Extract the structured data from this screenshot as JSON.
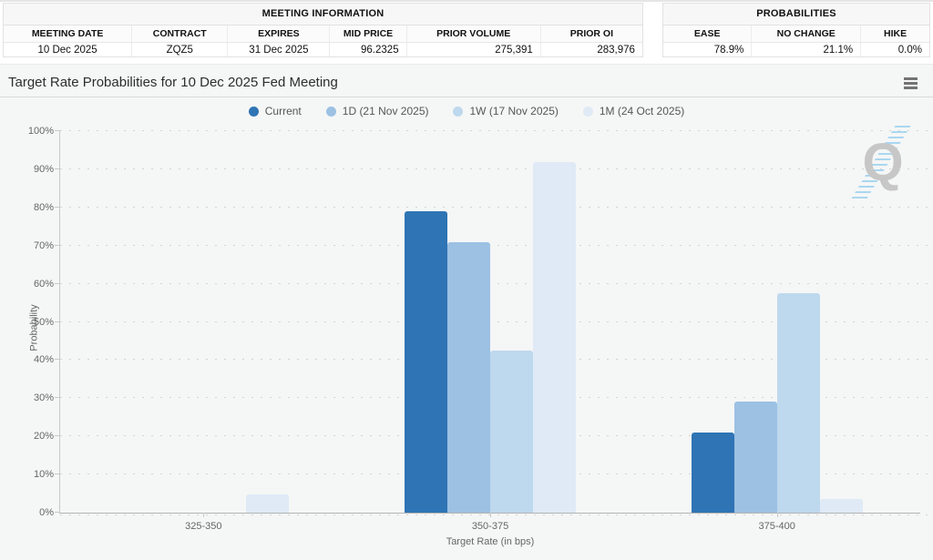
{
  "meeting_table": {
    "title": "MEETING INFORMATION",
    "columns": [
      "MEETING DATE",
      "CONTRACT",
      "EXPIRES",
      "MID PRICE",
      "PRIOR VOLUME",
      "PRIOR OI"
    ],
    "values": [
      "10 Dec 2025",
      "ZQZ5",
      "31 Dec 2025",
      "96.2325",
      "275,391",
      "283,976"
    ]
  },
  "probabilities_table": {
    "title": "PROBABILITIES",
    "columns": [
      "EASE",
      "NO CHANGE",
      "HIKE"
    ],
    "values": [
      "78.9%",
      "21.1%",
      "0.0%"
    ]
  },
  "chart": {
    "title": "Target Rate Probabilities for 10 Dec 2025 Fed Meeting",
    "menu_icon": "hamburger-icon",
    "watermark_letter": "Q"
  },
  "chart_data": {
    "type": "bar",
    "title": "Target Rate Probabilities for 10 Dec 2025 Fed Meeting",
    "categories": [
      "325-350",
      "350-375",
      "375-400"
    ],
    "series": [
      {
        "name": "Current",
        "color": "#2f74b4",
        "values": [
          0,
          78.9,
          21.1
        ]
      },
      {
        "name": "1D (21 Nov 2025)",
        "color": "#9cc1e3",
        "values": [
          0,
          70.9,
          29.1
        ]
      },
      {
        "name": "1W (17 Nov 2025)",
        "color": "#bed8ee",
        "values": [
          0,
          42.4,
          57.6
        ]
      },
      {
        "name": "1M (24 Oct 2025)",
        "color": "#dfeaf6",
        "values": [
          4.7,
          91.8,
          3.5
        ]
      }
    ],
    "xlabel": "Target Rate (in bps)",
    "ylabel": "Probability",
    "ylim": [
      0,
      100
    ],
    "ytick_step": 10,
    "ytick_suffix": "%",
    "grid": "dotted",
    "legend_position": "top"
  }
}
